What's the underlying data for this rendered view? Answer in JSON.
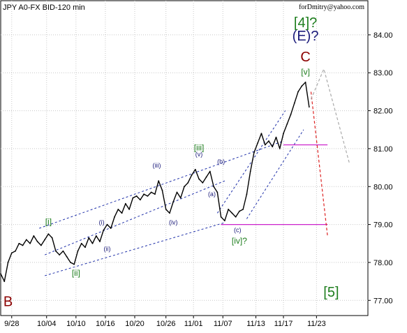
{
  "chart_data": {
    "type": "line",
    "title": "JPY A0-FX BID-120 min",
    "watermark": "forDmitry@yahoo.com",
    "ylim": [
      76.6,
      84.9
    ],
    "xlim": [
      0,
      100
    ],
    "y_ticks": [
      {
        "v": 77,
        "label": "77.00"
      },
      {
        "v": 78,
        "label": "78.00"
      },
      {
        "v": 79,
        "label": "79.00"
      },
      {
        "v": 80,
        "label": "80.00"
      },
      {
        "v": 81,
        "label": "81.00"
      },
      {
        "v": 82,
        "label": "82.00"
      },
      {
        "v": 83,
        "label": "83.00"
      },
      {
        "v": 84,
        "label": "84.00"
      }
    ],
    "x_ticks": [
      {
        "x": 3,
        "label": "9/28"
      },
      {
        "x": 12.5,
        "label": "10/04"
      },
      {
        "x": 20.5,
        "label": "10/10"
      },
      {
        "x": 28.5,
        "label": "10/16"
      },
      {
        "x": 36.5,
        "label": "10/20"
      },
      {
        "x": 45,
        "label": "10/26"
      },
      {
        "x": 52.5,
        "label": "11/01"
      },
      {
        "x": 60.5,
        "label": "11/07"
      },
      {
        "x": 69.5,
        "label": "11/13"
      },
      {
        "x": 77,
        "label": "11/17"
      },
      {
        "x": 86,
        "label": "11/23"
      }
    ],
    "series": [
      {
        "name": "",
        "x": [
          0,
          1,
          2,
          3,
          4,
          5,
          6,
          7,
          8,
          9,
          10,
          11,
          12,
          13,
          14,
          15,
          16,
          17,
          18,
          19,
          20,
          21,
          22,
          23,
          24,
          25,
          26,
          27,
          28,
          29,
          30,
          31,
          32,
          33,
          34,
          35,
          36,
          37,
          38,
          39,
          40,
          41,
          42,
          43,
          44,
          45,
          46,
          47,
          48,
          49,
          50,
          51,
          52,
          53,
          54,
          55,
          56,
          57,
          58,
          59,
          60,
          61,
          62,
          63,
          64,
          65,
          66,
          67,
          68,
          69,
          70,
          71,
          72,
          73,
          74,
          75,
          76,
          77,
          78,
          79,
          80,
          81,
          82,
          83,
          84
        ],
        "y": [
          77.7,
          77.5,
          78.0,
          78.25,
          78.3,
          78.5,
          78.45,
          78.6,
          78.5,
          78.7,
          78.55,
          78.45,
          78.6,
          78.75,
          78.65,
          78.3,
          78.2,
          78.3,
          78.15,
          78.0,
          77.95,
          78.3,
          78.5,
          78.4,
          78.65,
          78.5,
          78.7,
          78.55,
          78.85,
          79.0,
          78.9,
          79.2,
          79.4,
          79.3,
          79.55,
          79.4,
          79.7,
          79.75,
          79.65,
          79.8,
          79.75,
          79.85,
          79.8,
          80.15,
          79.9,
          79.4,
          79.3,
          79.6,
          79.85,
          79.7,
          80.0,
          80.1,
          80.3,
          80.45,
          80.2,
          80.1,
          80.25,
          80.4,
          80.0,
          79.85,
          79.2,
          79.1,
          79.4,
          79.3,
          79.2,
          79.35,
          79.4,
          79.8,
          80.4,
          80.9,
          81.15,
          81.4,
          81.1,
          81.2,
          81.05,
          81.3,
          81.0,
          81.4,
          81.65,
          81.9,
          82.2,
          82.5,
          82.65,
          82.75,
          82.1
        ]
      }
    ],
    "channels": [
      {
        "name": "channel-upper",
        "points": [
          [
            10.5,
            78.9
          ],
          [
            77,
            81.2
          ]
        ]
      },
      {
        "name": "channel-mid",
        "points": [
          [
            12,
            78.2
          ],
          [
            61,
            80.15
          ]
        ]
      },
      {
        "name": "channel-lower",
        "points": [
          [
            12,
            77.65
          ],
          [
            61,
            79.05
          ]
        ]
      },
      {
        "name": "wave-v-upper",
        "points": [
          [
            59,
            79.3
          ],
          [
            77.5,
            82.0
          ]
        ]
      },
      {
        "name": "wave-v-lower",
        "points": [
          [
            67,
            79.15
          ],
          [
            82.5,
            81.5
          ]
        ]
      }
    ],
    "levels": [
      {
        "name": "level-81-1",
        "y": 81.1,
        "x": [
          77,
          89
        ]
      },
      {
        "name": "level-79",
        "y": 79.0,
        "x": [
          60,
          89
        ]
      }
    ],
    "forecast_paths": [
      {
        "name": "forecast-red",
        "points": [
          [
            84.5,
            82.5
          ],
          [
            89,
            78.7
          ]
        ]
      },
      {
        "name": "forecast-grey",
        "points": [
          [
            84.5,
            82.3
          ],
          [
            88,
            83.1
          ],
          [
            95,
            80.6
          ]
        ]
      }
    ],
    "annotations": [
      {
        "text": "[4]?",
        "x": 83,
        "y": 84.2,
        "color": "#1e7e1e",
        "size": 20
      },
      {
        "text": "(E)?",
        "x": 83,
        "y": 83.85,
        "color": "#1a1a7a",
        "size": 20
      },
      {
        "text": "C",
        "x": 83,
        "y": 83.3,
        "color": "#8b0000",
        "size": 20
      },
      {
        "text": "[v]",
        "x": 83,
        "y": 82.95,
        "color": "#1e7e1e",
        "size": 12
      },
      {
        "text": "[iii]",
        "x": 54,
        "y": 80.95,
        "color": "#1e7e1e",
        "size": 12
      },
      {
        "text": "(v)",
        "x": 54,
        "y": 80.8,
        "color": "#1a1a7a",
        "size": 9
      },
      {
        "text": "(iii)",
        "x": 42.5,
        "y": 80.5,
        "color": "#1a1a7a",
        "size": 9
      },
      {
        "text": "(b)",
        "x": 60,
        "y": 80.6,
        "color": "#1a1a7a",
        "size": 9
      },
      {
        "text": "(a)",
        "x": 57.5,
        "y": 79.75,
        "color": "#1a1a7a",
        "size": 9
      },
      {
        "text": "(iv)",
        "x": 47,
        "y": 79.0,
        "color": "#1a1a7a",
        "size": 9
      },
      {
        "text": "(c)",
        "x": 64.5,
        "y": 78.8,
        "color": "#1a1a7a",
        "size": 9
      },
      {
        "text": "[iv]?",
        "x": 65,
        "y": 78.5,
        "color": "#1e7e1e",
        "size": 12
      },
      {
        "text": "[i]",
        "x": 13,
        "y": 79.0,
        "color": "#1e7e1e",
        "size": 12
      },
      {
        "text": "(i)",
        "x": 27.5,
        "y": 79.0,
        "color": "#1a1a7a",
        "size": 9
      },
      {
        "text": "(ii)",
        "x": 29,
        "y": 78.3,
        "color": "#1a1a7a",
        "size": 9
      },
      {
        "text": "[ii]",
        "x": 20.5,
        "y": 77.65,
        "color": "#1e7e1e",
        "size": 12
      },
      {
        "text": "B",
        "x": 2,
        "y": 76.85,
        "color": "#8b0000",
        "size": 20
      },
      {
        "text": "[5]",
        "x": 90,
        "y": 77.1,
        "color": "#1e7e1e",
        "size": 20
      }
    ]
  }
}
